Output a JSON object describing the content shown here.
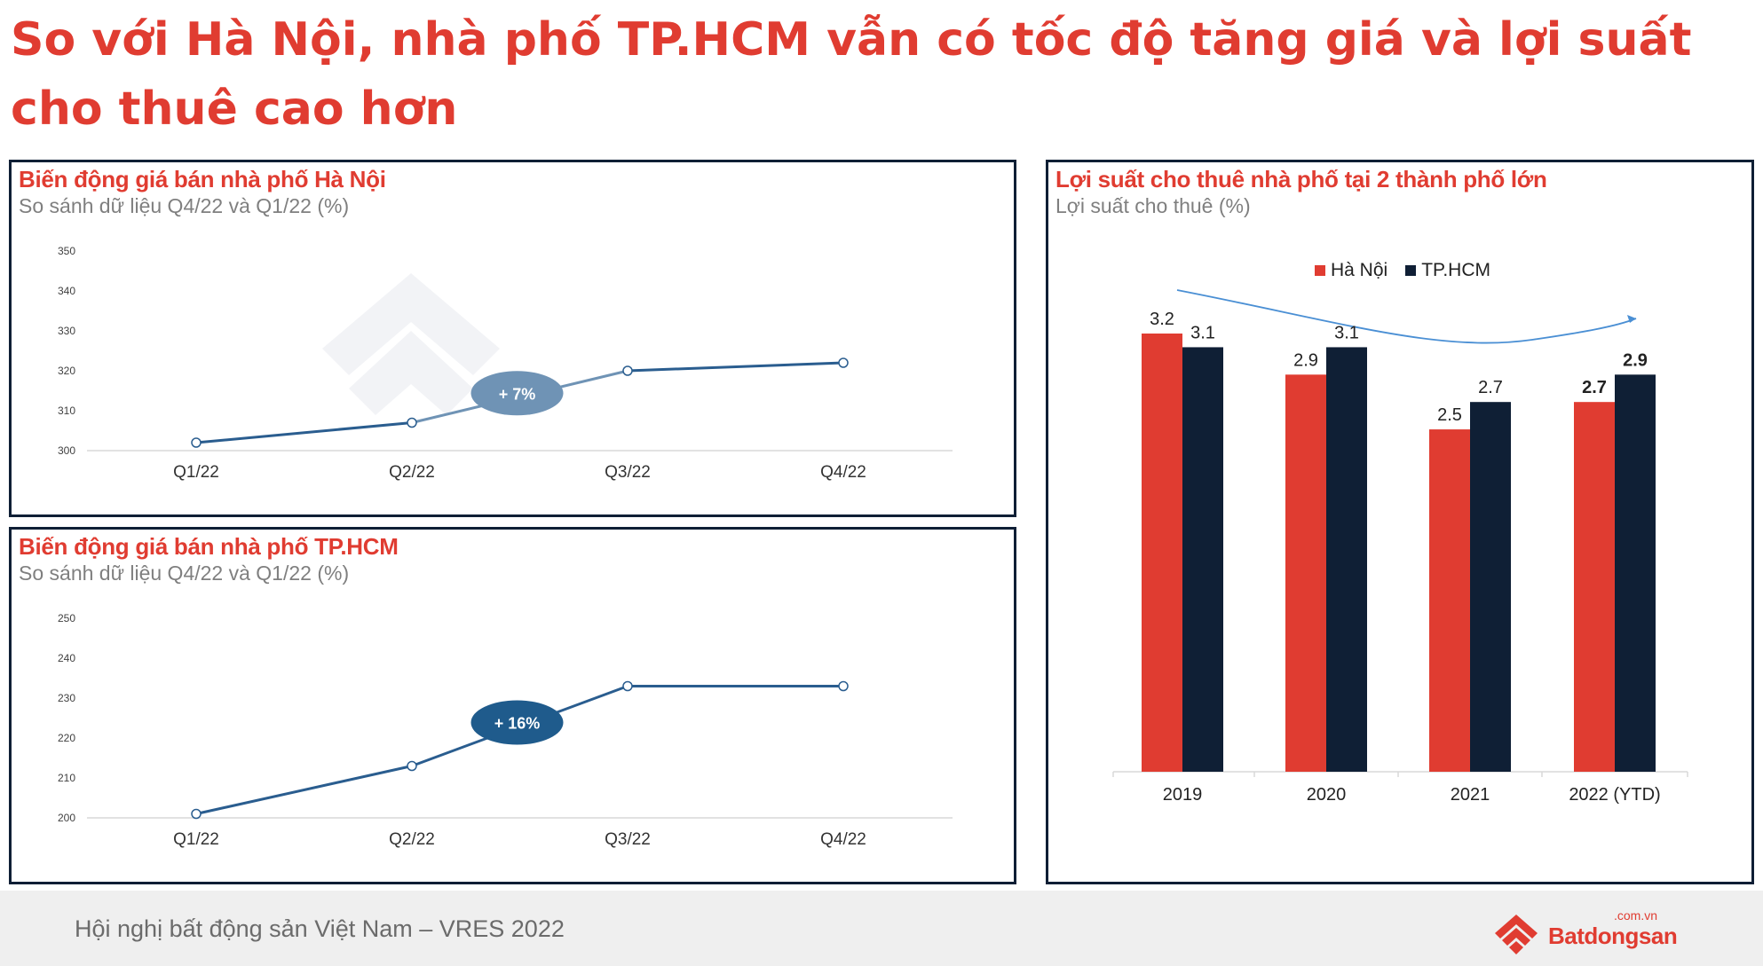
{
  "title": "So với Hà Nội, nhà phố TP.HCM vẫn có tốc độ tăng giá và lợi suất cho thuê cao hơn",
  "panels": {
    "hanoi": {
      "title": "Biến động giá bán nhà phố Hà Nội",
      "subtitle": "So sánh dữ liệu Q4/22 và Q1/22 (%)",
      "badge": "+ 7%"
    },
    "hcm": {
      "title": "Biến động giá bán nhà phố TP.HCM",
      "subtitle": "So sánh dữ liệu Q4/22 và Q1/22 (%)",
      "badge": "+ 16%"
    },
    "yield": {
      "title": "Lợi suất cho thuê nhà phố tại 2 thành phố lớn",
      "subtitle": "Lợi suất cho thuê (%)"
    }
  },
  "footer": {
    "text": "Hội nghị bất động sản Việt Nam – VRES 2022",
    "logo_word": "Batdongsan",
    "logo_domain": ".com.vn"
  },
  "colors": {
    "accent_red": "#e03c31",
    "navy": "#0f1f35",
    "line_blue": "#2a5d8f",
    "badge_light": "#6f93b5",
    "badge_dark": "#1f5b8c"
  },
  "icons": {
    "logo": "house-logo-icon",
    "trend_arrow": "trend-arrow-icon"
  },
  "chart_data": [
    {
      "type": "line",
      "categories": [
        "Q1/22",
        "Q2/22",
        "Q3/22",
        "Q4/22"
      ],
      "values": [
        302,
        307,
        320,
        322
      ],
      "ylim": [
        300,
        350
      ],
      "yticks": [
        300,
        310,
        320,
        330,
        340,
        350
      ],
      "grid": false
    },
    {
      "type": "line",
      "categories": [
        "Q1/22",
        "Q2/22",
        "Q3/22",
        "Q4/22"
      ],
      "values": [
        201,
        213,
        233,
        233
      ],
      "ylim": [
        200,
        250
      ],
      "yticks": [
        200,
        210,
        220,
        230,
        240,
        250
      ],
      "grid": false
    },
    {
      "type": "bar",
      "categories": [
        "2019",
        "2020",
        "2021",
        "2022 (YTD)"
      ],
      "series": [
        {
          "name": "Hà Nội",
          "values": [
            3.2,
            2.9,
            2.5,
            2.7
          ],
          "labels": [
            "3.2",
            "2.9",
            "2.5",
            "2.7"
          ],
          "color": "#e03c31"
        },
        {
          "name": "TP.HCM",
          "values": [
            3.1,
            3.1,
            2.7,
            2.9
          ],
          "labels": [
            "3.1",
            "3.1",
            "2.7",
            "2.9"
          ],
          "color": "#0f1f35"
        }
      ],
      "ylim": [
        0,
        3.2
      ],
      "legend": "top",
      "grid": false
    }
  ]
}
